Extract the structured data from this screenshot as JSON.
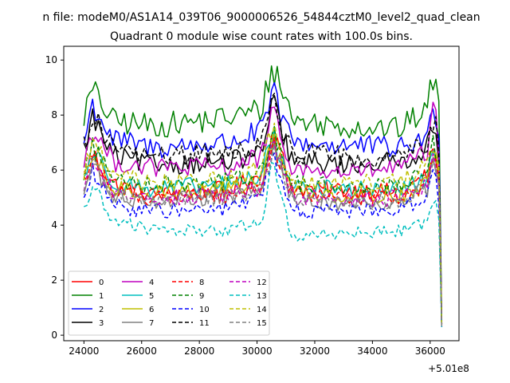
{
  "figure": {
    "suptitle": "n file: modeM0/AS1A14_039T06_9000006526_54844cztM0_level2_quad_clean"
  },
  "chart_data": {
    "type": "line",
    "title": "Quadrant 0 module wise count rates with 100.0s bins.",
    "xlabel": "",
    "ylabel": "",
    "x_offset_label": "+5.01e8",
    "xlim": [
      23300,
      37000
    ],
    "ylim": [
      -0.2,
      10.5
    ],
    "x_ticks": [
      24000,
      26000,
      28000,
      30000,
      32000,
      34000,
      36000
    ],
    "y_ticks": [
      0,
      2,
      4,
      6,
      8,
      10
    ],
    "x_tick_labels": [
      "24000",
      "26000",
      "28000",
      "30000",
      "32000",
      "34000",
      "36000"
    ],
    "y_tick_labels": [
      "0",
      "2",
      "4",
      "6",
      "8",
      "10"
    ],
    "grid": false,
    "legend": {
      "position": "lower-left",
      "columns": 4
    },
    "key_times": [
      24000,
      24300,
      25000,
      26400,
      29000,
      30150,
      30550,
      31100,
      31300,
      33000,
      35000,
      35900,
      36150,
      36350,
      36400
    ],
    "series": [
      {
        "name": "0",
        "color": "#ff0000",
        "dash": "solid",
        "values": [
          5.8,
          6.6,
          5.5,
          5.1,
          5.3,
          5.8,
          7.4,
          5.7,
          5.3,
          5.3,
          5.2,
          5.8,
          7.0,
          5.0,
          0.4
        ]
      },
      {
        "name": "1",
        "color": "#008000",
        "dash": "solid",
        "values": [
          8.0,
          8.9,
          7.8,
          7.6,
          7.9,
          8.2,
          9.8,
          8.3,
          7.8,
          7.6,
          7.5,
          8.3,
          9.6,
          7.6,
          0.5
        ]
      },
      {
        "name": "2",
        "color": "#0000ff",
        "dash": "solid",
        "values": [
          7.0,
          8.4,
          7.1,
          6.8,
          7.0,
          7.4,
          8.8,
          7.3,
          7.0,
          6.9,
          6.8,
          7.2,
          8.2,
          7.4,
          0.5
        ]
      },
      {
        "name": "3",
        "color": "#000000",
        "dash": "solid",
        "values": [
          6.7,
          7.9,
          6.5,
          6.2,
          6.3,
          6.6,
          8.4,
          6.6,
          6.3,
          6.2,
          6.3,
          6.8,
          7.7,
          6.1,
          0.4
        ]
      },
      {
        "name": "4",
        "color": "#bf00bf",
        "dash": "solid",
        "values": [
          6.3,
          7.5,
          6.3,
          6.1,
          6.1,
          6.5,
          8.0,
          6.4,
          6.0,
          5.9,
          6.1,
          6.6,
          8.4,
          5.9,
          0.4
        ]
      },
      {
        "name": "5",
        "color": "#00bfbf",
        "dash": "solid",
        "values": [
          5.7,
          6.7,
          5.6,
          5.3,
          5.5,
          5.8,
          7.3,
          5.7,
          5.4,
          5.3,
          5.3,
          5.7,
          6.9,
          5.5,
          0.4
        ]
      },
      {
        "name": "6",
        "color": "#bfbf00",
        "dash": "solid",
        "values": [
          5.5,
          6.5,
          5.3,
          5.2,
          5.3,
          5.6,
          7.1,
          5.5,
          5.2,
          5.1,
          5.1,
          5.5,
          6.8,
          5.2,
          0.4
        ]
      },
      {
        "name": "7",
        "color": "#808080",
        "dash": "solid",
        "values": [
          5.2,
          6.2,
          5.0,
          4.9,
          5.0,
          5.3,
          6.9,
          5.3,
          4.9,
          4.8,
          4.9,
          5.3,
          6.5,
          5.0,
          0.3
        ]
      },
      {
        "name": "8",
        "color": "#ff0000",
        "dash": "dashed",
        "values": [
          5.6,
          6.4,
          5.3,
          5.0,
          5.1,
          5.5,
          7.0,
          5.4,
          5.1,
          5.0,
          5.0,
          5.5,
          6.7,
          5.1,
          0.4
        ]
      },
      {
        "name": "9",
        "color": "#008000",
        "dash": "dashed",
        "values": [
          5.9,
          6.9,
          5.7,
          5.5,
          5.6,
          5.9,
          7.4,
          5.8,
          5.5,
          5.4,
          5.5,
          5.9,
          7.1,
          5.6,
          0.4
        ]
      },
      {
        "name": "10",
        "color": "#0000ff",
        "dash": "dashed",
        "values": [
          5.0,
          5.9,
          4.7,
          4.5,
          4.6,
          5.0,
          6.5,
          4.8,
          4.5,
          4.5,
          4.6,
          5.0,
          6.2,
          4.6,
          0.3
        ]
      },
      {
        "name": "11",
        "color": "#000000",
        "dash": "dashed",
        "values": [
          6.9,
          8.0,
          6.8,
          6.5,
          6.6,
          6.9,
          8.6,
          6.9,
          6.6,
          6.5,
          6.5,
          7.0,
          7.9,
          6.6,
          0.4
        ]
      },
      {
        "name": "12",
        "color": "#bf00bf",
        "dash": "dashed",
        "values": [
          5.4,
          6.3,
          5.2,
          5.0,
          5.1,
          5.4,
          6.9,
          5.4,
          5.0,
          4.9,
          5.0,
          5.4,
          6.6,
          5.1,
          0.4
        ]
      },
      {
        "name": "13",
        "color": "#00bfbf",
        "dash": "dashed",
        "values": [
          4.6,
          5.4,
          4.2,
          3.8,
          3.8,
          4.2,
          6.2,
          3.9,
          3.6,
          3.7,
          3.8,
          4.1,
          5.0,
          4.0,
          0.3
        ]
      },
      {
        "name": "14",
        "color": "#bfbf00",
        "dash": "dashed",
        "values": [
          6.0,
          7.0,
          5.8,
          5.5,
          5.7,
          6.0,
          7.6,
          5.9,
          5.6,
          5.5,
          5.6,
          6.1,
          7.3,
          5.7,
          0.4
        ]
      },
      {
        "name": "15",
        "color": "#808080",
        "dash": "dashed",
        "values": [
          5.3,
          6.2,
          5.1,
          4.9,
          5.0,
          5.3,
          6.8,
          5.2,
          4.9,
          4.8,
          4.9,
          5.3,
          6.4,
          5.0,
          0.3
        ]
      }
    ]
  }
}
